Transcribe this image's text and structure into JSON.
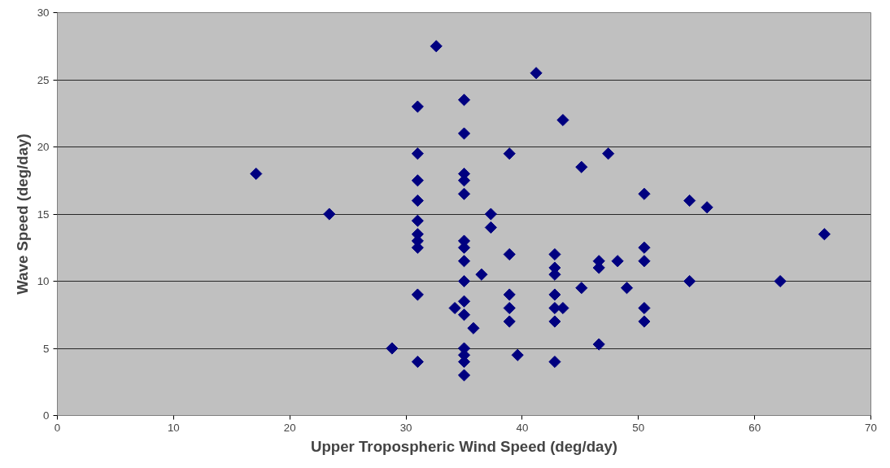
{
  "chart_data": {
    "type": "scatter",
    "xlabel": "Upper Tropospheric Wind Speed (deg/day)",
    "ylabel": "Wave Speed (deg/day)",
    "xlim": [
      0,
      70
    ],
    "ylim": [
      0,
      30
    ],
    "xticks": [
      0,
      10,
      20,
      30,
      40,
      50,
      60,
      70
    ],
    "yticks": [
      0,
      5,
      10,
      15,
      20,
      25,
      30
    ],
    "grid": "y",
    "marker": "diamond",
    "series": [
      {
        "color": "#000080",
        "x": [
          17.1,
          23.4,
          28.8,
          31.0,
          31.0,
          31.0,
          31.0,
          31.0,
          31.0,
          31.0,
          31.0,
          31.0,
          31.0,
          32.6,
          35.0,
          35.0,
          35.0,
          35.0,
          35.0,
          35.0,
          35.0,
          35.0,
          35.0,
          35.0,
          35.0,
          35.0,
          35.0,
          35.0,
          35.0,
          34.2,
          35.8,
          36.5,
          37.3,
          37.3,
          38.9,
          38.9,
          38.9,
          38.9,
          38.9,
          39.6,
          41.2,
          42.8,
          42.8,
          42.8,
          42.8,
          42.8,
          42.8,
          42.8,
          43.5,
          43.5,
          45.1,
          45.1,
          46.6,
          46.6,
          46.6,
          47.4,
          48.2,
          49.0,
          50.5,
          50.5,
          50.5,
          50.5,
          50.5,
          54.4,
          54.4,
          55.9,
          62.2,
          66.0
        ],
        "values": [
          18,
          15,
          5,
          23,
          19.5,
          17.5,
          16,
          14.5,
          13.5,
          13,
          12.5,
          9,
          4,
          27.5,
          23.5,
          21,
          18,
          17.5,
          16.5,
          13,
          12.5,
          11.5,
          10,
          8.5,
          7.5,
          5,
          4.5,
          4,
          3,
          8,
          6.5,
          10.5,
          15,
          14,
          19.5,
          12,
          9,
          8,
          7,
          4.5,
          25.5,
          12,
          11,
          10.5,
          9,
          8,
          7,
          4,
          22,
          8,
          18.5,
          9.5,
          11.5,
          11,
          5.3,
          19.5,
          11.5,
          9.5,
          16.5,
          12.5,
          11.5,
          8,
          7,
          16,
          10,
          15.5,
          10,
          13.5
        ]
      }
    ]
  }
}
